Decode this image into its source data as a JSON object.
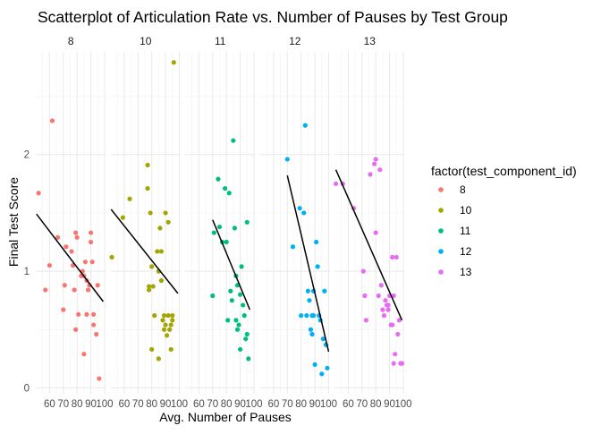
{
  "chart_data": {
    "type": "scatter",
    "title": "Scatterplot of Articulation Rate vs. Number of Pauses by Test Group",
    "xlabel": "Avg. Number of Pauses",
    "ylabel": "Final Test Score",
    "x_ticks": [
      "60",
      "70",
      "80",
      "90",
      "100"
    ],
    "y_ticks": [
      {
        "value": 0,
        "label": "0"
      },
      {
        "value": 1,
        "label": "1"
      },
      {
        "value": 2,
        "label": "2"
      }
    ],
    "xlim": [
      50,
      101
    ],
    "ylim": [
      -0.05,
      2.88
    ],
    "grid": true,
    "legend": {
      "title": "factor(test_component_id)",
      "position": "right"
    },
    "facets": [
      {
        "label": "8",
        "color": "#F8766D",
        "trend": [
          [
            50.5,
            1.49
          ],
          [
            99,
            0.74
          ]
        ],
        "points": [
          [
            52,
            1.67
          ],
          [
            57,
            0.84
          ],
          [
            62,
            2.29
          ],
          [
            60,
            1.05
          ],
          [
            66,
            1.29
          ],
          [
            70,
            0.67
          ],
          [
            71,
            0.88
          ],
          [
            72,
            1.21
          ],
          [
            76,
            1.17
          ],
          [
            77,
            1.05
          ],
          [
            78,
            0.84
          ],
          [
            79,
            0.5
          ],
          [
            79,
            1.33
          ],
          [
            80,
            1.29
          ],
          [
            81,
            0.63
          ],
          [
            83,
            0.96
          ],
          [
            84,
            1.0
          ],
          [
            85,
            0.29
          ],
          [
            85,
            0.96
          ],
          [
            86,
            1.08
          ],
          [
            87,
            0.92
          ],
          [
            87,
            0.63
          ],
          [
            88,
            0.84
          ],
          [
            89,
            0.88
          ],
          [
            90,
            1.33
          ],
          [
            90,
            1.25
          ],
          [
            91,
            1.08
          ],
          [
            92,
            0.54
          ],
          [
            92,
            0.63
          ],
          [
            94,
            0.46
          ],
          [
            95,
            0.88
          ],
          [
            96,
            0.08
          ]
        ]
      },
      {
        "label": "10",
        "color": "#A3A500",
        "trend": [
          [
            50.5,
            1.53
          ],
          [
            99,
            0.81
          ]
        ],
        "points": [
          [
            51,
            1.12
          ],
          [
            59,
            1.46
          ],
          [
            64,
            1.62
          ],
          [
            77,
            1.91
          ],
          [
            77,
            1.71
          ],
          [
            78,
            0.84
          ],
          [
            78,
            0.87
          ],
          [
            79,
            1.5
          ],
          [
            80,
            1.04
          ],
          [
            80,
            0.33
          ],
          [
            81,
            0.87
          ],
          [
            82,
            0.62
          ],
          [
            84,
            1.17
          ],
          [
            85,
            1.0
          ],
          [
            85,
            0.25
          ],
          [
            86,
            1.37
          ],
          [
            87,
            1.17
          ],
          [
            87,
            0.92
          ],
          [
            88,
            0.58
          ],
          [
            89,
            0.62
          ],
          [
            89,
            0.5
          ],
          [
            90,
            1.5
          ],
          [
            90,
            0.54
          ],
          [
            91,
            0.45
          ],
          [
            92,
            1.42
          ],
          [
            92,
            0.62
          ],
          [
            93,
            0.5
          ],
          [
            94,
            0.54
          ],
          [
            94,
            0.33
          ],
          [
            95,
            0.58
          ],
          [
            95,
            0.62
          ],
          [
            96,
            2.79
          ]
        ]
      },
      {
        "label": "11",
        "color": "#00BF7D",
        "trend": [
          [
            70,
            1.44
          ],
          [
            97,
            0.67
          ]
        ],
        "points": [
          [
            70,
            0.79
          ],
          [
            71,
            1.33
          ],
          [
            74,
            1.79
          ],
          [
            75,
            1.38
          ],
          [
            77,
            1.25
          ],
          [
            79,
            1.71
          ],
          [
            80,
            1.25
          ],
          [
            81,
            0.58
          ],
          [
            82,
            1.67
          ],
          [
            83,
            0.83
          ],
          [
            84,
            0.75
          ],
          [
            85,
            2.12
          ],
          [
            86,
            1.37
          ],
          [
            87,
            0.96
          ],
          [
            87,
            0.58
          ],
          [
            88,
            0.88
          ],
          [
            88,
            0.5
          ],
          [
            89,
            0.54
          ],
          [
            90,
            0.33
          ],
          [
            90,
            0.8
          ],
          [
            91,
            1.04
          ],
          [
            92,
            0.71
          ],
          [
            93,
            0.62
          ],
          [
            94,
            0.42
          ],
          [
            95,
            1.42
          ],
          [
            95,
            0.46
          ],
          [
            96,
            0.25
          ]
        ]
      },
      {
        "label": "12",
        "color": "#00B0F6",
        "trend": [
          [
            70,
            1.82
          ],
          [
            100,
            0.31
          ]
        ],
        "points": [
          [
            70,
            1.96
          ],
          [
            74,
            1.21
          ],
          [
            79,
            1.54
          ],
          [
            80,
            0.62
          ],
          [
            82,
            1.5
          ],
          [
            83,
            2.25
          ],
          [
            84,
            0.62
          ],
          [
            85,
            0.83
          ],
          [
            86,
            0.75
          ],
          [
            87,
            0.5
          ],
          [
            88,
            0.46
          ],
          [
            88,
            0.62
          ],
          [
            89,
            0.83
          ],
          [
            89,
            0.62
          ],
          [
            90,
            0.2
          ],
          [
            91,
            1.25
          ],
          [
            92,
            1.04
          ],
          [
            93,
            0.62
          ],
          [
            94,
            0.58
          ],
          [
            95,
            0.12
          ],
          [
            96,
            0.42
          ],
          [
            97,
            0.83
          ],
          [
            98,
            0.37
          ],
          [
            99,
            0.17
          ]
        ]
      },
      {
        "label": "13",
        "color": "#E76BF3",
        "trend": [
          [
            51,
            1.87
          ],
          [
            99,
            0.58
          ]
        ],
        "points": [
          [
            51,
            1.75
          ],
          [
            56,
            1.75
          ],
          [
            64,
            1.54
          ],
          [
            71,
            1.0
          ],
          [
            72,
            0.79
          ],
          [
            73,
            0.58
          ],
          [
            76,
            1.83
          ],
          [
            79,
            1.92
          ],
          [
            80,
            1.33
          ],
          [
            80,
            1.96
          ],
          [
            82,
            0.79
          ],
          [
            83,
            1.87
          ],
          [
            84,
            0.88
          ],
          [
            85,
            0.67
          ],
          [
            86,
            0.62
          ],
          [
            87,
            0.75
          ],
          [
            88,
            0.71
          ],
          [
            89,
            0.67
          ],
          [
            89,
            0.71
          ],
          [
            90,
            0.79
          ],
          [
            91,
            0.54
          ],
          [
            92,
            1.12
          ],
          [
            92,
            0.54
          ],
          [
            93,
            0.21
          ],
          [
            93,
            0.79
          ],
          [
            94,
            0.29
          ],
          [
            95,
            1.12
          ],
          [
            96,
            0.46
          ],
          [
            97,
            0.58
          ],
          [
            98,
            0.21
          ],
          [
            99,
            0.21
          ]
        ]
      }
    ]
  }
}
